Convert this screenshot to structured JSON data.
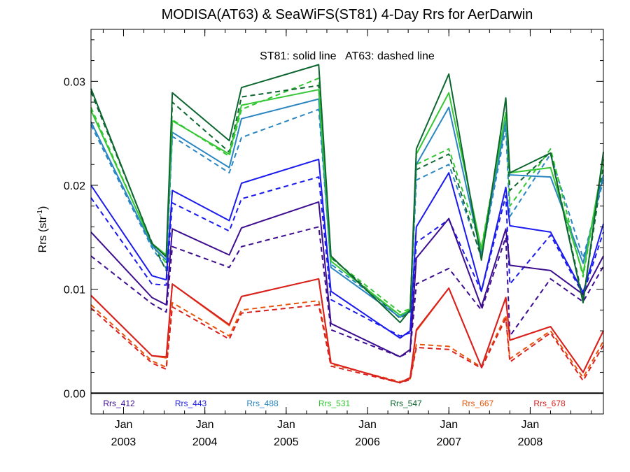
{
  "chart_data": {
    "type": "line",
    "title": "MODISA(AT63) & SeaWiFS(ST81) 4-Day Rrs for AerDarwin",
    "annotation": "ST81: solid line   AT63: dashed line",
    "ylabel_main": "Rrs (str",
    "ylabel_sup": "-1",
    "ylabel_close": ")",
    "ylim": [
      -0.002,
      0.035
    ],
    "xlim": [
      0.0,
      12.6
    ],
    "yticks": [
      {
        "value": 0.0,
        "label": "0.00"
      },
      {
        "value": 0.01,
        "label": "0.01"
      },
      {
        "value": 0.02,
        "label": "0.02"
      },
      {
        "value": 0.03,
        "label": "0.03"
      }
    ],
    "xticks": [
      {
        "x": 0.8,
        "month": "Jan",
        "year": "2003"
      },
      {
        "x": 2.8,
        "month": "Jan",
        "year": "2004"
      },
      {
        "x": 4.8,
        "month": "Jan",
        "year": "2005"
      },
      {
        "x": 6.8,
        "month": "Jan",
        "year": "2006"
      },
      {
        "x": 8.8,
        "month": "Jan",
        "year": "2007"
      },
      {
        "x": 10.8,
        "month": "Jan",
        "year": "2008"
      }
    ],
    "zero_line": true,
    "x": [
      0.0,
      1.5,
      1.85,
      2.0,
      3.4,
      3.7,
      5.6,
      5.9,
      7.6,
      7.85,
      8.0,
      8.8,
      9.6,
      10.2,
      10.3,
      11.3,
      12.1,
      12.6
    ],
    "series": [
      {
        "name": "Rrs_412",
        "color": "#3d0d8f",
        "solid": [
          0.0155,
          0.0092,
          0.0085,
          0.0158,
          0.0133,
          0.0159,
          0.0184,
          0.0067,
          0.0035,
          0.0042,
          0.013,
          0.0168,
          0.0083,
          0.0158,
          0.0123,
          0.0118,
          0.0095,
          0.0132
        ],
        "dashed": [
          0.0132,
          0.0086,
          0.0078,
          0.0141,
          0.0121,
          0.0141,
          0.016,
          0.0061,
          0.0035,
          0.004,
          0.0105,
          0.012,
          0.008,
          0.015,
          0.0055,
          0.011,
          0.0088,
          0.0122
        ]
      },
      {
        "name": "Rrs_443",
        "color": "#1a1aee",
        "solid": [
          0.02,
          0.0113,
          0.0109,
          0.0195,
          0.0166,
          0.0202,
          0.0225,
          0.0098,
          0.0053,
          0.006,
          0.016,
          0.0212,
          0.0098,
          0.0198,
          0.0161,
          0.0155,
          0.0097,
          0.0163
        ],
        "dashed": [
          0.0188,
          0.0105,
          0.0104,
          0.0183,
          0.0156,
          0.0187,
          0.0208,
          0.009,
          0.0055,
          0.0058,
          0.0145,
          0.0167,
          0.0098,
          0.019,
          0.0105,
          0.0152,
          0.0095,
          0.0155
        ]
      },
      {
        "name": "Rrs_488",
        "color": "#2a86c2",
        "solid": [
          0.0261,
          0.0142,
          0.0128,
          0.0251,
          0.0217,
          0.0264,
          0.0283,
          0.0121,
          0.0073,
          0.008,
          0.022,
          0.0275,
          0.0133,
          0.0262,
          0.021,
          0.0208,
          0.0125,
          0.021
        ],
        "dashed": [
          0.0258,
          0.014,
          0.012,
          0.0247,
          0.0212,
          0.0246,
          0.0273,
          0.0124,
          0.0075,
          0.0078,
          0.0205,
          0.022,
          0.0132,
          0.0255,
          0.017,
          0.023,
          0.013,
          0.0205
        ]
      },
      {
        "name": "Rrs_531",
        "color": "#33c733",
        "solid": [
          0.0272,
          0.0144,
          0.0133,
          0.0262,
          0.023,
          0.0277,
          0.0292,
          0.0127,
          0.0075,
          0.008,
          0.023,
          0.0289,
          0.0138,
          0.027,
          0.0212,
          0.0217,
          0.0115,
          0.0225
        ],
        "dashed": [
          0.0275,
          0.0143,
          0.0125,
          0.0263,
          0.0228,
          0.0273,
          0.0303,
          0.013,
          0.0078,
          0.0081,
          0.022,
          0.0235,
          0.014,
          0.027,
          0.018,
          0.0235,
          0.0112,
          0.0225
        ]
      },
      {
        "name": "Rrs_547",
        "color": "#0d6630",
        "solid": [
          0.0293,
          0.0144,
          0.0131,
          0.0289,
          0.0243,
          0.0294,
          0.0316,
          0.0132,
          0.0068,
          0.008,
          0.0235,
          0.0307,
          0.0128,
          0.0284,
          0.0212,
          0.0231,
          0.0087,
          0.0232
        ],
        "dashed": [
          0.029,
          0.0145,
          0.0118,
          0.028,
          0.0232,
          0.0285,
          0.0296,
          0.0131,
          0.0072,
          0.0079,
          0.0215,
          0.023,
          0.013,
          0.027,
          0.0195,
          0.0232,
          0.009,
          0.022
        ]
      },
      {
        "name": "Rrs_667",
        "color": "#e8540c",
        "solid": [
          0.0094,
          0.0036,
          0.0034,
          0.0105,
          0.0065,
          0.0093,
          0.011,
          0.0029,
          0.001,
          0.0015,
          0.006,
          0.0101,
          0.0025,
          0.0092,
          0.0051,
          0.0064,
          0.002,
          0.006
        ],
        "dashed": [
          0.0085,
          0.0031,
          0.0025,
          0.0087,
          0.0055,
          0.008,
          0.0089,
          0.0028,
          0.0011,
          0.0014,
          0.0047,
          0.0045,
          0.0025,
          0.0075,
          0.0033,
          0.006,
          0.0015,
          0.005
        ]
      },
      {
        "name": "Rrs_678",
        "color": "#d92020",
        "solid": [
          0.0094,
          0.0036,
          0.0035,
          0.0105,
          0.0066,
          0.0093,
          0.011,
          0.0029,
          0.001,
          0.0015,
          0.0061,
          0.0101,
          0.0025,
          0.0092,
          0.0051,
          0.0064,
          0.002,
          0.006
        ],
        "dashed": [
          0.0082,
          0.0029,
          0.0023,
          0.0083,
          0.0052,
          0.0077,
          0.0085,
          0.0026,
          0.001,
          0.0013,
          0.0044,
          0.0042,
          0.0024,
          0.0072,
          0.003,
          0.0058,
          0.0012,
          0.0046
        ]
      }
    ]
  }
}
